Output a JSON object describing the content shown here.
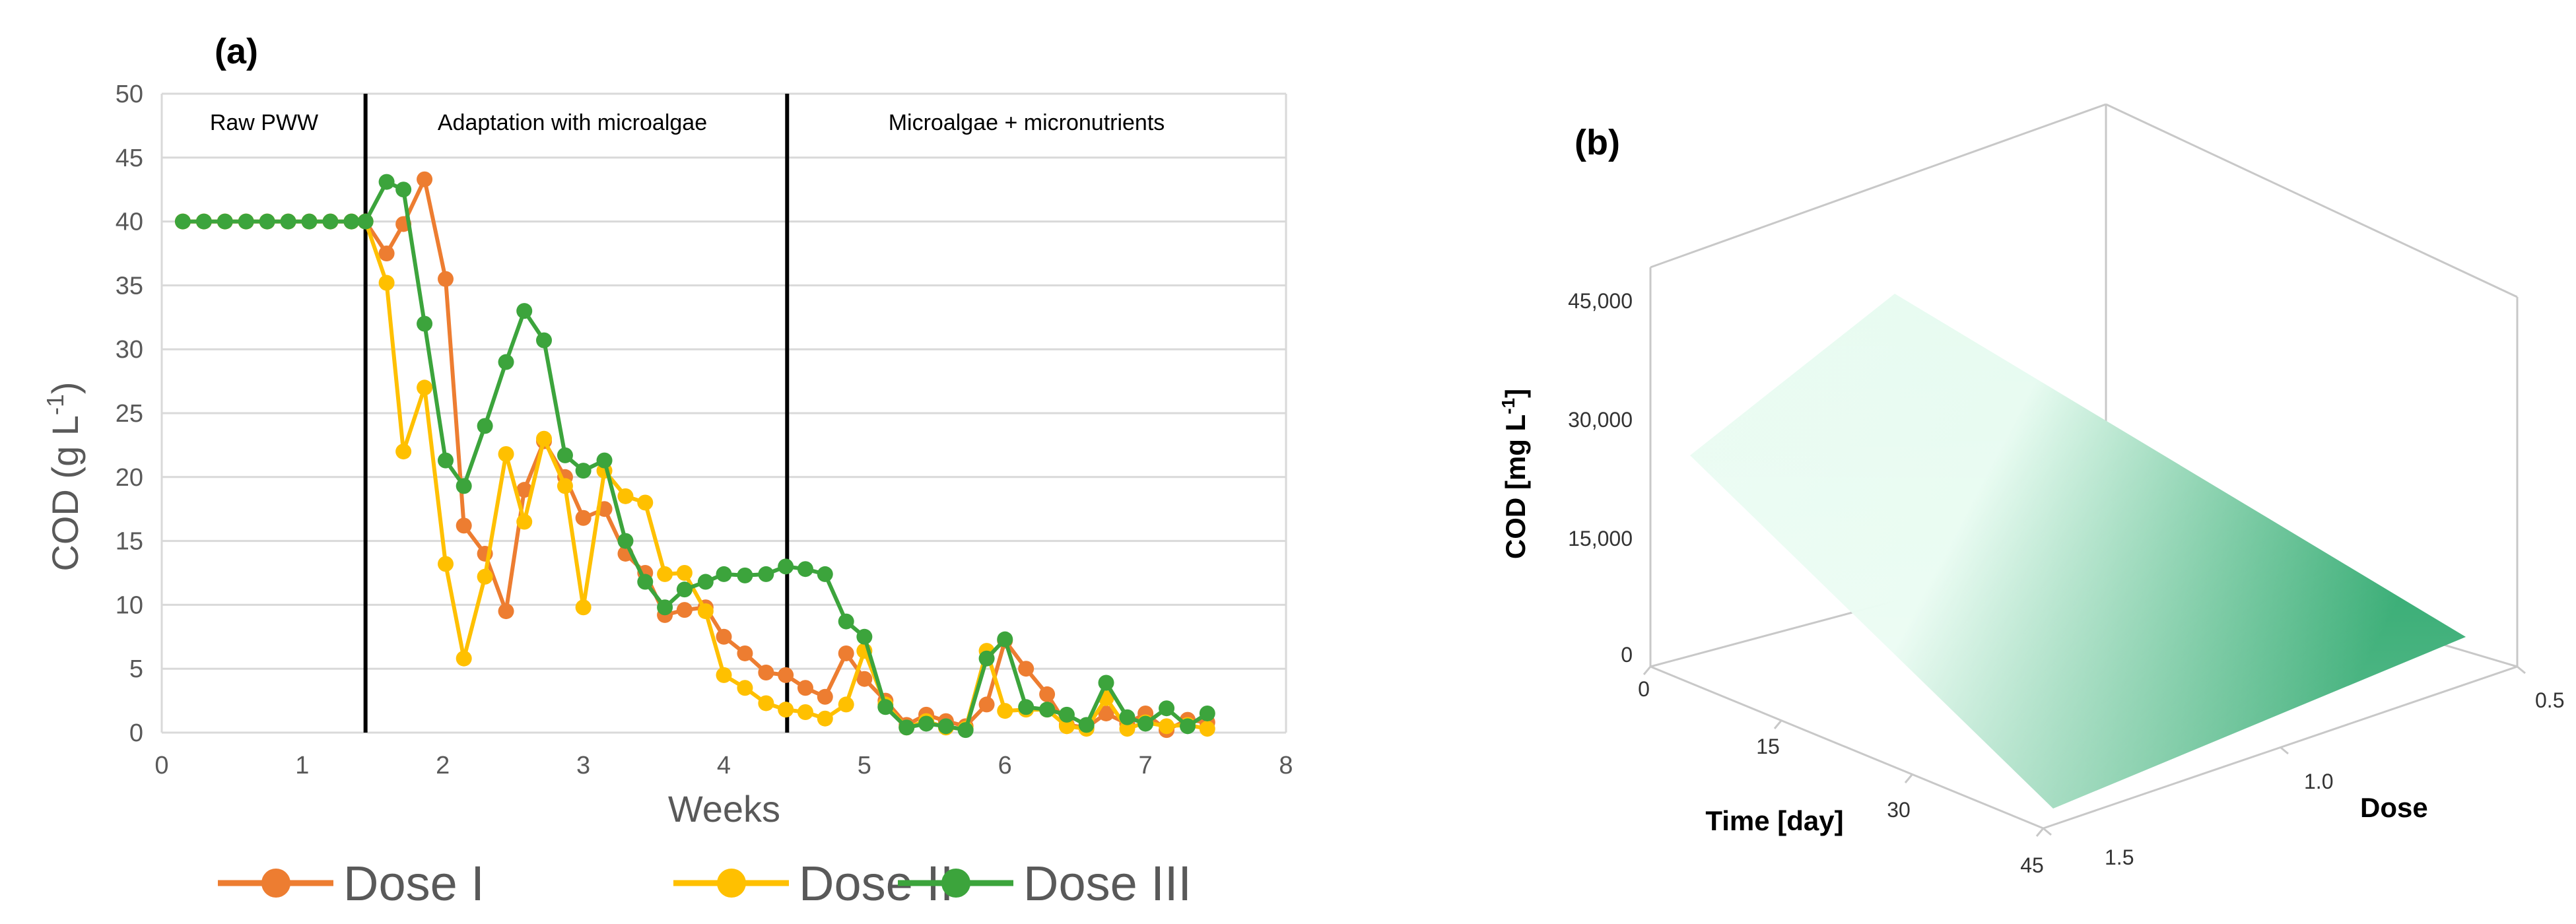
{
  "chart_data": [
    {
      "panel_label": "(a)",
      "type": "line",
      "xlabel": "Weeks",
      "ylabel_main": "COD (g L",
      "ylabel_sup": "-1",
      "ylabel_close": ")",
      "xlim": [
        0,
        8
      ],
      "ylim": [
        0,
        50
      ],
      "xticks": [
        "0",
        "1",
        "2",
        "3",
        "4",
        "5",
        "6",
        "7",
        "8"
      ],
      "yticks": [
        "0",
        "5",
        "10",
        "15",
        "20",
        "25",
        "30",
        "35",
        "40",
        "45",
        "50"
      ],
      "grid": "horizontal",
      "legend_position": "bottom",
      "phase_dividers": [
        1.45,
        4.45
      ],
      "phases": [
        "Raw PWW",
        "Adaptation with microalgae",
        "Microalgae + micronutrients"
      ],
      "series": [
        {
          "name": "Dose I",
          "color": "#ED7D31",
          "points": [
            [
              0.15,
              40
            ],
            [
              0.3,
              40
            ],
            [
              0.45,
              40
            ],
            [
              0.6,
              40
            ],
            [
              0.75,
              40
            ],
            [
              0.9,
              40
            ],
            [
              1.05,
              40
            ],
            [
              1.2,
              40
            ],
            [
              1.35,
              40
            ],
            [
              1.45,
              40
            ],
            [
              1.6,
              37.5
            ],
            [
              1.72,
              39.8
            ],
            [
              1.87,
              43.3
            ],
            [
              2.02,
              35.5
            ],
            [
              2.15,
              16.2
            ],
            [
              2.3,
              14
            ],
            [
              2.45,
              9.5
            ],
            [
              2.58,
              19
            ],
            [
              2.72,
              22.8
            ],
            [
              2.87,
              20
            ],
            [
              3.0,
              16.8
            ],
            [
              3.15,
              17.5
            ],
            [
              3.3,
              14
            ],
            [
              3.44,
              12.5
            ],
            [
              3.58,
              9.2
            ],
            [
              3.72,
              9.6
            ],
            [
              3.87,
              9.8
            ],
            [
              4.0,
              7.5
            ],
            [
              4.15,
              6.2
            ],
            [
              4.3,
              4.7
            ],
            [
              4.44,
              4.5
            ],
            [
              4.58,
              3.5
            ],
            [
              4.72,
              2.8
            ],
            [
              4.87,
              6.2
            ],
            [
              5.0,
              4.2
            ],
            [
              5.15,
              2.5
            ],
            [
              5.3,
              0.6
            ],
            [
              5.44,
              1.4
            ],
            [
              5.58,
              0.9
            ],
            [
              5.72,
              0.5
            ],
            [
              5.87,
              2.2
            ],
            [
              6.0,
              7.2
            ],
            [
              6.15,
              5
            ],
            [
              6.3,
              3
            ],
            [
              6.44,
              0.6
            ],
            [
              6.58,
              0.4
            ],
            [
              6.72,
              1.5
            ],
            [
              6.87,
              0.7
            ],
            [
              7.0,
              1.5
            ],
            [
              7.15,
              0.2
            ],
            [
              7.3,
              1
            ],
            [
              7.44,
              0.8
            ]
          ]
        },
        {
          "name": "Dose II",
          "color": "#FFC000",
          "points": [
            [
              0.15,
              40
            ],
            [
              0.3,
              40
            ],
            [
              0.45,
              40
            ],
            [
              0.6,
              40
            ],
            [
              0.75,
              40
            ],
            [
              0.9,
              40
            ],
            [
              1.05,
              40
            ],
            [
              1.2,
              40
            ],
            [
              1.35,
              40
            ],
            [
              1.45,
              40
            ],
            [
              1.6,
              35.2
            ],
            [
              1.72,
              22
            ],
            [
              1.87,
              27
            ],
            [
              2.02,
              13.2
            ],
            [
              2.15,
              5.8
            ],
            [
              2.3,
              12.2
            ],
            [
              2.45,
              21.8
            ],
            [
              2.58,
              16.5
            ],
            [
              2.72,
              23
            ],
            [
              2.87,
              19.3
            ],
            [
              3.0,
              9.8
            ],
            [
              3.15,
              20.5
            ],
            [
              3.3,
              18.5
            ],
            [
              3.44,
              18
            ],
            [
              3.58,
              12.4
            ],
            [
              3.72,
              12.5
            ],
            [
              3.87,
              9.5
            ],
            [
              4.0,
              4.5
            ],
            [
              4.15,
              3.5
            ],
            [
              4.3,
              2.3
            ],
            [
              4.44,
              1.8
            ],
            [
              4.58,
              1.6
            ],
            [
              4.72,
              1.1
            ],
            [
              4.87,
              2.2
            ],
            [
              5.0,
              6.4
            ],
            [
              5.15,
              2.2
            ],
            [
              5.3,
              0.4
            ],
            [
              5.44,
              0.9
            ],
            [
              5.58,
              0.4
            ],
            [
              5.72,
              0.3
            ],
            [
              5.87,
              6.4
            ],
            [
              6.0,
              1.7
            ],
            [
              6.15,
              1.8
            ],
            [
              6.3,
              1.8
            ],
            [
              6.44,
              0.5
            ],
            [
              6.58,
              0.3
            ],
            [
              6.72,
              2.7
            ],
            [
              6.87,
              0.3
            ],
            [
              7.0,
              0.8
            ],
            [
              7.15,
              0.5
            ],
            [
              7.3,
              0.6
            ],
            [
              7.44,
              0.3
            ]
          ]
        },
        {
          "name": "Dose III",
          "color": "#3CA43C",
          "points": [
            [
              0.15,
              40
            ],
            [
              0.3,
              40
            ],
            [
              0.45,
              40
            ],
            [
              0.6,
              40
            ],
            [
              0.75,
              40
            ],
            [
              0.9,
              40
            ],
            [
              1.05,
              40
            ],
            [
              1.2,
              40
            ],
            [
              1.35,
              40
            ],
            [
              1.45,
              40
            ],
            [
              1.6,
              43.1
            ],
            [
              1.72,
              42.5
            ],
            [
              1.87,
              32
            ],
            [
              2.02,
              21.3
            ],
            [
              2.15,
              19.3
            ],
            [
              2.3,
              24
            ],
            [
              2.45,
              29
            ],
            [
              2.58,
              33
            ],
            [
              2.72,
              30.7
            ],
            [
              2.87,
              21.7
            ],
            [
              3.0,
              20.5
            ],
            [
              3.15,
              21.3
            ],
            [
              3.3,
              15
            ],
            [
              3.44,
              11.8
            ],
            [
              3.58,
              9.8
            ],
            [
              3.72,
              11.2
            ],
            [
              3.87,
              11.8
            ],
            [
              4.0,
              12.4
            ],
            [
              4.15,
              12.3
            ],
            [
              4.3,
              12.4
            ],
            [
              4.44,
              13
            ],
            [
              4.58,
              12.8
            ],
            [
              4.72,
              12.4
            ],
            [
              4.87,
              8.7
            ],
            [
              5.0,
              7.5
            ],
            [
              5.15,
              2
            ],
            [
              5.3,
              0.4
            ],
            [
              5.44,
              0.7
            ],
            [
              5.58,
              0.5
            ],
            [
              5.72,
              0.2
            ],
            [
              5.87,
              5.8
            ],
            [
              6.0,
              7.3
            ],
            [
              6.15,
              2
            ],
            [
              6.3,
              1.8
            ],
            [
              6.44,
              1.4
            ],
            [
              6.58,
              0.6
            ],
            [
              6.72,
              3.9
            ],
            [
              6.87,
              1.2
            ],
            [
              7.0,
              0.7
            ],
            [
              7.15,
              1.9
            ],
            [
              7.3,
              0.5
            ],
            [
              7.44,
              1.5
            ]
          ]
        }
      ]
    },
    {
      "panel_label": "(b)",
      "type": "surface",
      "zlabel_main": "COD [mg L",
      "zlabel_sup": "-1",
      "zlabel_close": "]",
      "xlabel": "Time [day]",
      "ylabel": "Dose",
      "zticks": [
        "0",
        "15,000",
        "30,000",
        "45,000"
      ],
      "xticks": [
        "0",
        "15",
        "30",
        "45"
      ],
      "yticks": [
        "0.5",
        "1.0",
        "1.5"
      ],
      "surface_color_low": "#e6fbf0",
      "surface_color_high": "#0a9a55",
      "corner_values": {
        "time_0_dose_1.5": 25000,
        "time_0_dose_0.5": 38000,
        "time_45_dose_0.5": 1000,
        "time_45_dose_1.5": 0
      }
    }
  ]
}
